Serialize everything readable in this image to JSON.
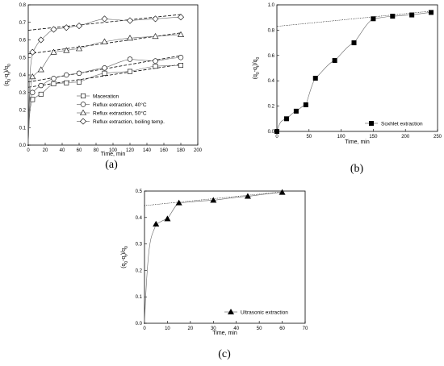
{
  "chart_data": [
    {
      "id": "a",
      "type": "scatter",
      "panel_label": "(a)",
      "xlabel": "Time, min",
      "ylabel": "(q0-qt)/q0",
      "xlim": [
        0,
        200
      ],
      "ylim": [
        0,
        0.8
      ],
      "xticks": [
        "0",
        "20",
        "40",
        "60",
        "80",
        "100",
        "120",
        "140",
        "160",
        "180",
        "200"
      ],
      "yticks": [
        "0.0",
        "0.1",
        "0.2",
        "0.3",
        "0.4",
        "0.5",
        "0.6",
        "0.7",
        "0.8"
      ],
      "legend_position": "bottom-right",
      "series": [
        {
          "name": "Maceration",
          "marker": "square",
          "x": [
            0,
            5,
            15,
            30,
            45,
            60,
            90,
            120,
            150,
            180
          ],
          "y": [
            0,
            0.26,
            0.29,
            0.35,
            0.355,
            0.36,
            0.41,
            0.42,
            0.45,
            0.455
          ],
          "fit_line": [
            0.33,
            0.46
          ]
        },
        {
          "name": "Reflux extraction, 40°C",
          "marker": "circle",
          "x": [
            0,
            5,
            15,
            30,
            45,
            60,
            90,
            120,
            150,
            180
          ],
          "y": [
            0,
            0.3,
            0.34,
            0.38,
            0.4,
            0.41,
            0.44,
            0.49,
            0.48,
            0.5
          ],
          "fit_line": [
            0.36,
            0.51
          ]
        },
        {
          "name": "Reflux extraction, 50°C",
          "marker": "triangle",
          "x": [
            0,
            5,
            15,
            30,
            45,
            60,
            90,
            120,
            150,
            180
          ],
          "y": [
            0,
            0.39,
            0.43,
            0.53,
            0.54,
            0.55,
            0.59,
            0.61,
            0.62,
            0.63
          ],
          "fit_line": [
            0.52,
            0.64
          ]
        },
        {
          "name": "Reflux extraction, boiling temp.",
          "marker": "diamond",
          "x": [
            0,
            5,
            15,
            30,
            45,
            60,
            90,
            120,
            150,
            180
          ],
          "y": [
            0,
            0.53,
            0.6,
            0.66,
            0.67,
            0.68,
            0.72,
            0.71,
            0.72,
            0.73
          ],
          "fit_line": [
            0.655,
            0.745
          ]
        }
      ]
    },
    {
      "id": "b",
      "type": "scatter",
      "panel_label": "(b)",
      "xlabel": "Time, min",
      "ylabel": "(q0-qt)/q0",
      "xlim": [
        0,
        250
      ],
      "ylim": [
        0,
        1.0
      ],
      "xticks": [
        "0",
        "50",
        "100",
        "150",
        "200",
        "250"
      ],
      "yticks": [
        "0.0",
        "0.2",
        "0.4",
        "0.6",
        "0.8",
        "1.0"
      ],
      "legend_position": "bottom-right",
      "series": [
        {
          "name": "Soxhlet extraction",
          "marker": "filled-square",
          "x": [
            0,
            15,
            30,
            45,
            60,
            90,
            120,
            150,
            180,
            210,
            240
          ],
          "y": [
            0,
            0.1,
            0.16,
            0.21,
            0.42,
            0.56,
            0.7,
            0.89,
            0.91,
            0.92,
            0.94
          ],
          "fit_line": [
            0.83,
            0.95
          ]
        }
      ]
    },
    {
      "id": "c",
      "type": "scatter",
      "panel_label": "(c)",
      "xlabel": "Time, min",
      "ylabel": "(q0-qt)/q0",
      "xlim": [
        0,
        70
      ],
      "ylim": [
        0,
        0.5
      ],
      "xticks": [
        "0",
        "10",
        "20",
        "30",
        "40",
        "50",
        "60",
        "70"
      ],
      "yticks": [
        "0.0",
        "0.1",
        "0.2",
        "0.3",
        "0.4",
        "0.5"
      ],
      "legend_position": "bottom-right",
      "series": [
        {
          "name": "Ultrasonic extraction",
          "marker": "filled-triangle",
          "x": [
            0,
            5,
            10,
            15,
            30,
            45,
            60
          ],
          "y": [
            0,
            0.375,
            0.395,
            0.455,
            0.465,
            0.48,
            0.495
          ],
          "fit_line": [
            0.445,
            0.497
          ]
        }
      ]
    }
  ]
}
